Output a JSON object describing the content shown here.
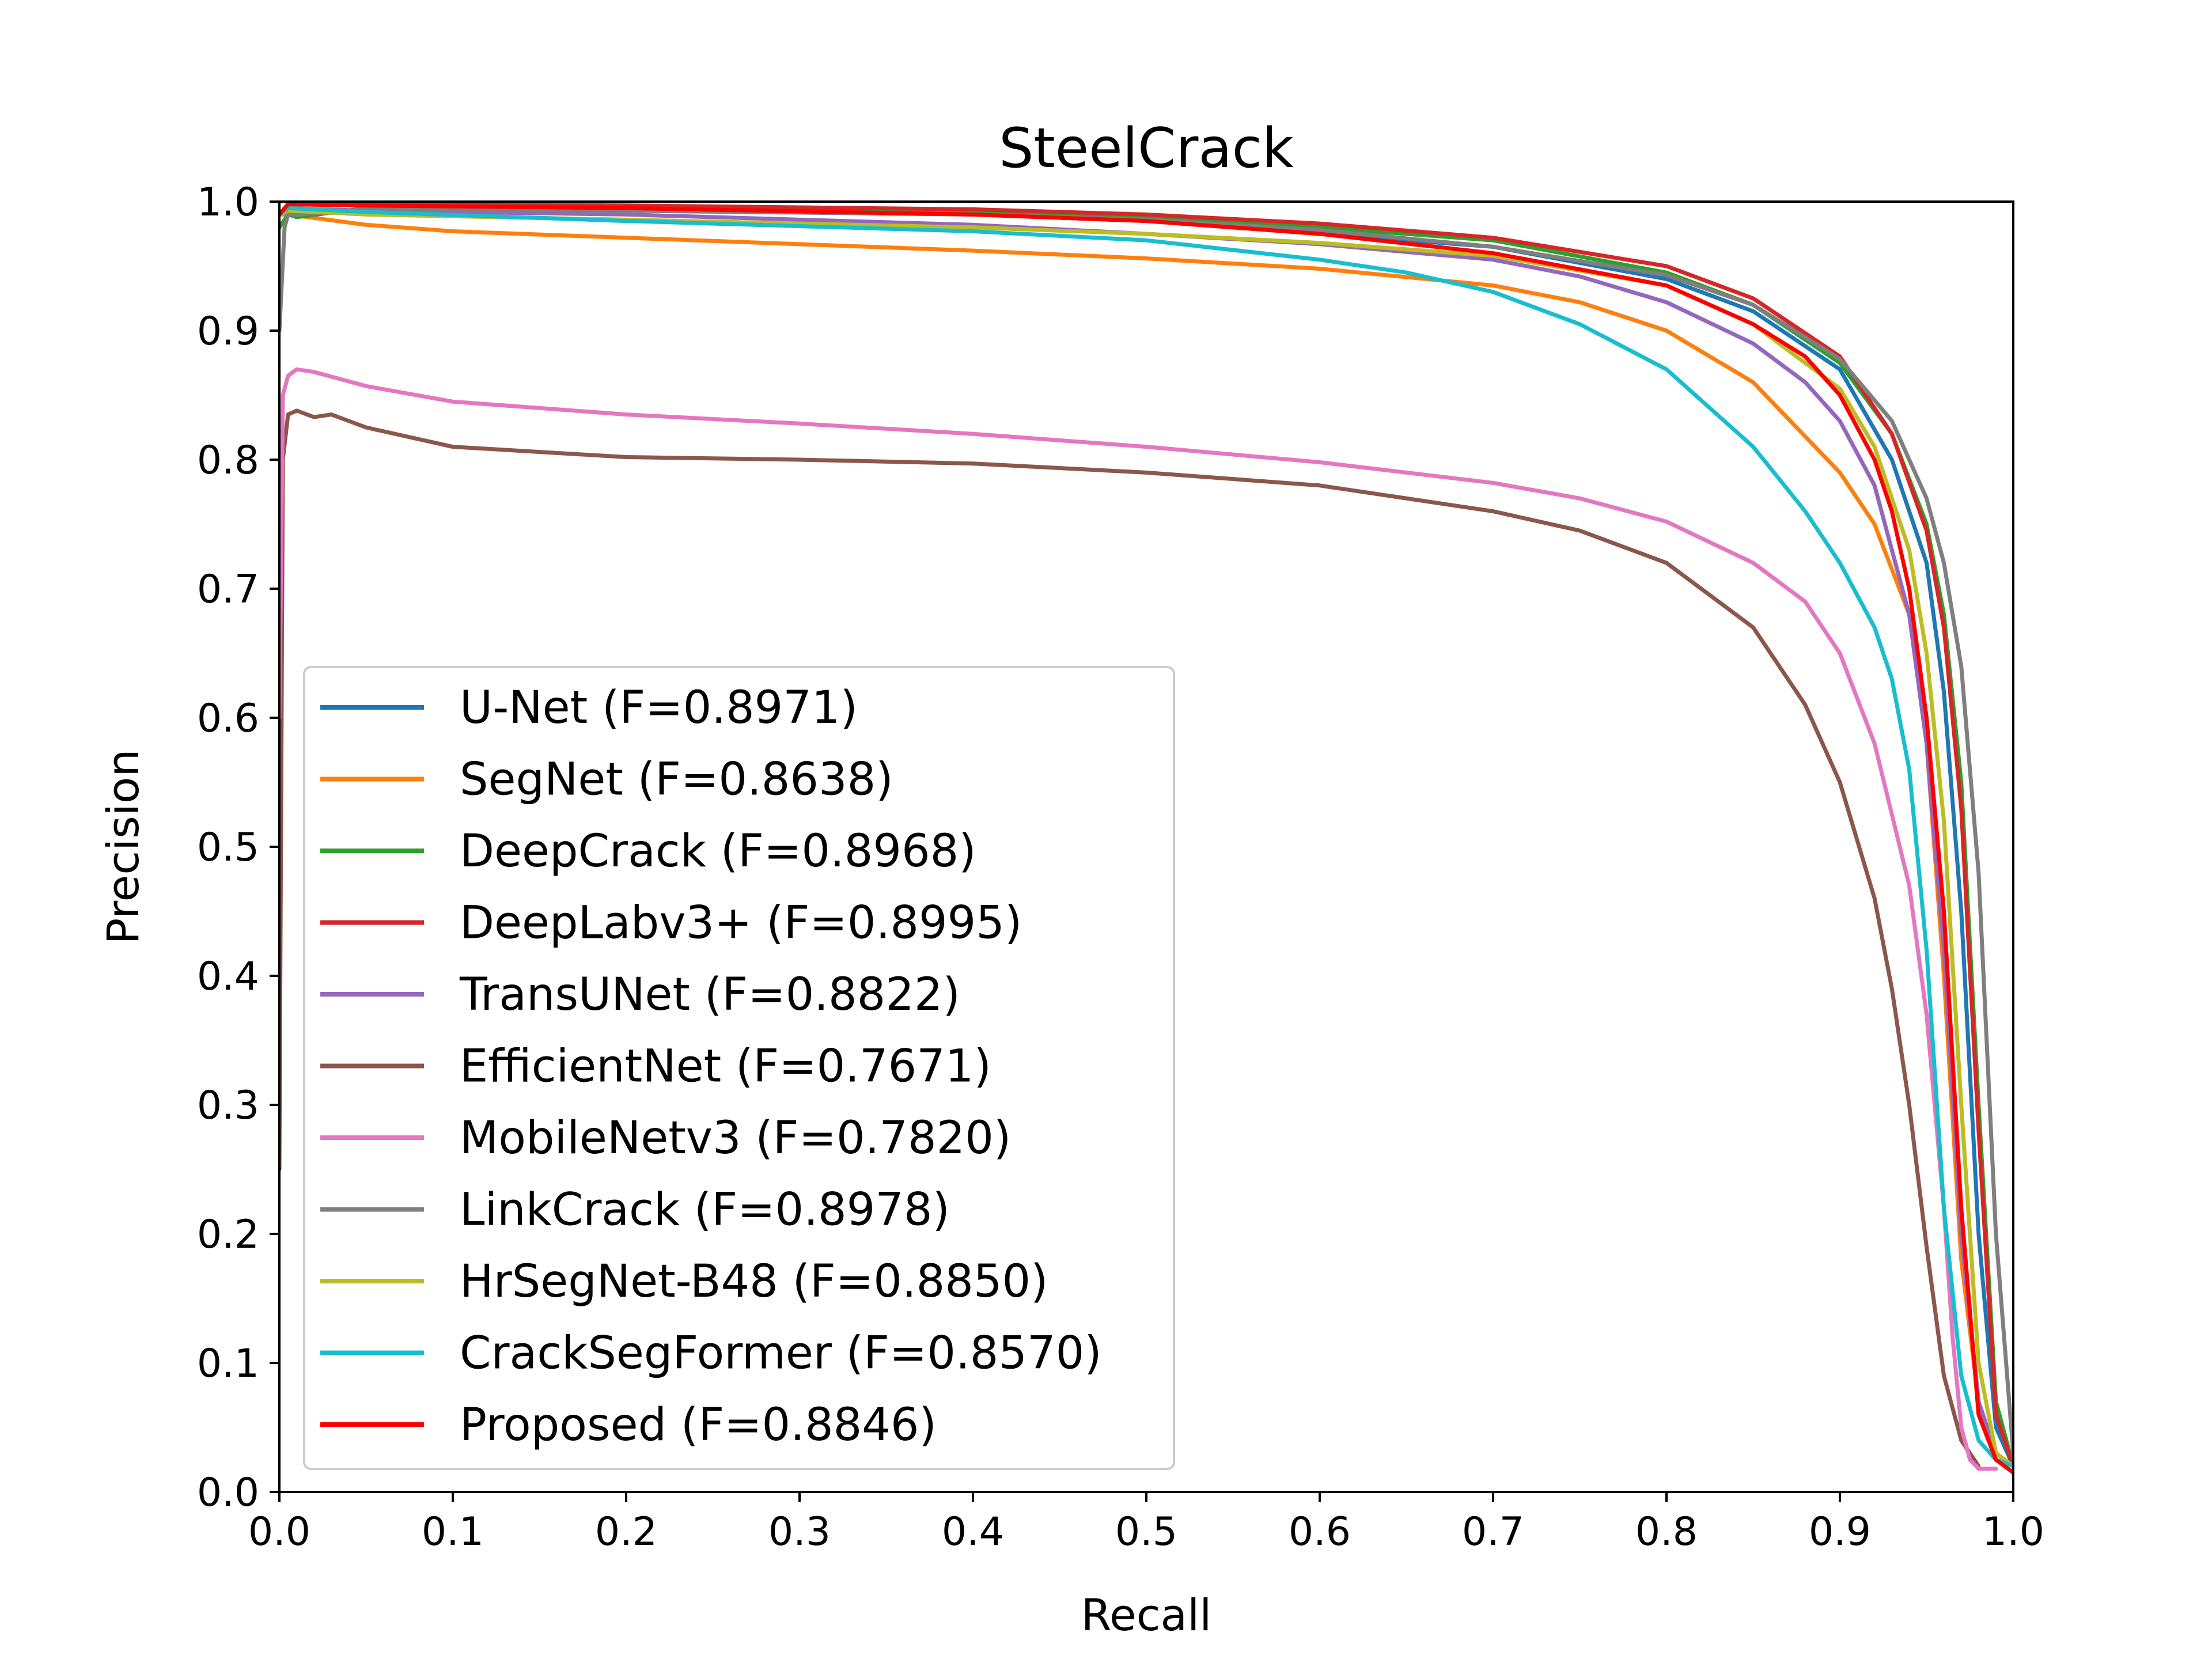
{
  "chart_data": {
    "type": "line",
    "title": "SteelCrack",
    "xlabel": "Recall",
    "ylabel": "Precision",
    "xlim": [
      0.0,
      1.0
    ],
    "ylim": [
      0.0,
      1.0
    ],
    "xticks": [
      "0.0",
      "0.1",
      "0.2",
      "0.3",
      "0.4",
      "0.5",
      "0.6",
      "0.7",
      "0.8",
      "0.9",
      "1.0"
    ],
    "yticks": [
      "0.0",
      "0.1",
      "0.2",
      "0.3",
      "0.4",
      "0.5",
      "0.6",
      "0.7",
      "0.8",
      "0.9",
      "1.0"
    ],
    "grid": false,
    "legend_position": "lower-left",
    "series": [
      {
        "name": "U-Net (F=0.8971)",
        "color": "#1f77b4",
        "x": [
          0.0,
          0.005,
          0.05,
          0.2,
          0.4,
          0.5,
          0.6,
          0.7,
          0.8,
          0.85,
          0.9,
          0.93,
          0.95,
          0.96,
          0.97,
          0.98,
          0.99,
          1.0
        ],
        "y": [
          0.99,
          0.998,
          0.997,
          0.995,
          0.99,
          0.985,
          0.975,
          0.965,
          0.94,
          0.915,
          0.87,
          0.8,
          0.72,
          0.62,
          0.45,
          0.2,
          0.05,
          0.02
        ]
      },
      {
        "name": "SegNet (F=0.8638)",
        "color": "#ff7f0e",
        "x": [
          0.0,
          0.005,
          0.05,
          0.1,
          0.2,
          0.3,
          0.4,
          0.5,
          0.6,
          0.7,
          0.75,
          0.8,
          0.85,
          0.9,
          0.92,
          0.94,
          0.95,
          0.96,
          0.97,
          0.98,
          0.99,
          1.0
        ],
        "y": [
          0.99,
          0.99,
          0.982,
          0.977,
          0.972,
          0.967,
          0.962,
          0.956,
          0.948,
          0.935,
          0.922,
          0.9,
          0.86,
          0.79,
          0.75,
          0.68,
          0.58,
          0.4,
          0.18,
          0.07,
          0.03,
          0.02
        ]
      },
      {
        "name": "DeepCrack (F=0.8968)",
        "color": "#2ca02c",
        "x": [
          0.0,
          0.005,
          0.01,
          0.05,
          0.2,
          0.4,
          0.5,
          0.6,
          0.7,
          0.8,
          0.85,
          0.9,
          0.93,
          0.95,
          0.96,
          0.97,
          0.98,
          0.99,
          1.0
        ],
        "y": [
          0.98,
          0.99,
          0.988,
          0.995,
          0.995,
          0.992,
          0.988,
          0.98,
          0.97,
          0.945,
          0.92,
          0.875,
          0.82,
          0.75,
          0.68,
          0.55,
          0.3,
          0.07,
          0.02
        ]
      },
      {
        "name": "DeepLabv3+ (F=0.8995)",
        "color": "#d62728",
        "x": [
          0.0,
          0.005,
          0.05,
          0.2,
          0.4,
          0.5,
          0.6,
          0.7,
          0.8,
          0.85,
          0.9,
          0.93,
          0.95,
          0.96,
          0.97,
          0.98,
          0.99,
          1.0
        ],
        "y": [
          0.99,
          0.998,
          0.998,
          0.997,
          0.994,
          0.99,
          0.983,
          0.972,
          0.95,
          0.925,
          0.88,
          0.82,
          0.745,
          0.67,
          0.53,
          0.28,
          0.06,
          0.02
        ]
      },
      {
        "name": "TransUNet (F=0.8822)",
        "color": "#9467bd",
        "x": [
          0.0,
          0.005,
          0.05,
          0.2,
          0.4,
          0.5,
          0.6,
          0.7,
          0.75,
          0.8,
          0.85,
          0.88,
          0.9,
          0.92,
          0.94,
          0.95,
          0.96,
          0.97,
          0.98,
          0.99,
          1.0
        ],
        "y": [
          0.99,
          0.995,
          0.993,
          0.99,
          0.982,
          0.975,
          0.967,
          0.955,
          0.942,
          0.922,
          0.89,
          0.86,
          0.83,
          0.78,
          0.68,
          0.58,
          0.42,
          0.2,
          0.07,
          0.03,
          0.02
        ]
      },
      {
        "name": "EfficientNet (F=0.7671)",
        "color": "#8c564b",
        "x": [
          0.0,
          0.002,
          0.005,
          0.01,
          0.02,
          0.03,
          0.05,
          0.1,
          0.2,
          0.3,
          0.4,
          0.5,
          0.6,
          0.7,
          0.75,
          0.8,
          0.85,
          0.88,
          0.9,
          0.92,
          0.93,
          0.94,
          0.95,
          0.96,
          0.97,
          0.98
        ],
        "y": [
          0.25,
          0.8,
          0.835,
          0.838,
          0.833,
          0.835,
          0.825,
          0.81,
          0.802,
          0.8,
          0.797,
          0.79,
          0.78,
          0.76,
          0.745,
          0.72,
          0.67,
          0.61,
          0.55,
          0.46,
          0.39,
          0.3,
          0.19,
          0.09,
          0.04,
          0.02
        ]
      },
      {
        "name": "MobileNetv3 (F=0.7820)",
        "color": "#e377c2",
        "x": [
          0.0,
          0.002,
          0.005,
          0.01,
          0.02,
          0.05,
          0.1,
          0.2,
          0.3,
          0.4,
          0.5,
          0.6,
          0.7,
          0.75,
          0.8,
          0.85,
          0.88,
          0.9,
          0.92,
          0.94,
          0.95,
          0.96,
          0.965,
          0.97,
          0.975,
          0.98,
          0.99
        ],
        "y": [
          0.6,
          0.85,
          0.865,
          0.87,
          0.868,
          0.857,
          0.845,
          0.835,
          0.828,
          0.82,
          0.81,
          0.798,
          0.782,
          0.77,
          0.752,
          0.72,
          0.69,
          0.65,
          0.58,
          0.47,
          0.37,
          0.22,
          0.12,
          0.05,
          0.025,
          0.018,
          0.018
        ]
      },
      {
        "name": "LinkCrack (F=0.8978)",
        "color": "#7f7f7f",
        "x": [
          0.0,
          0.003,
          0.005,
          0.01,
          0.05,
          0.2,
          0.4,
          0.5,
          0.6,
          0.7,
          0.8,
          0.85,
          0.9,
          0.93,
          0.95,
          0.96,
          0.97,
          0.98,
          0.99,
          1.0
        ],
        "y": [
          0.9,
          0.98,
          0.99,
          0.99,
          0.994,
          0.993,
          0.99,
          0.986,
          0.978,
          0.965,
          0.943,
          0.92,
          0.878,
          0.83,
          0.77,
          0.72,
          0.64,
          0.48,
          0.2,
          0.03
        ]
      },
      {
        "name": "HrSegNet-B48 (F=0.8850)",
        "color": "#bcbd22",
        "x": [
          0.0,
          0.005,
          0.05,
          0.2,
          0.4,
          0.5,
          0.6,
          0.7,
          0.8,
          0.85,
          0.9,
          0.92,
          0.94,
          0.95,
          0.96,
          0.97,
          0.98,
          0.99,
          1.0
        ],
        "y": [
          0.99,
          0.993,
          0.99,
          0.986,
          0.98,
          0.975,
          0.968,
          0.958,
          0.935,
          0.905,
          0.855,
          0.81,
          0.73,
          0.65,
          0.52,
          0.3,
          0.1,
          0.03,
          0.02
        ]
      },
      {
        "name": "CrackSegFormer (F=0.8570)",
        "color": "#17becf",
        "x": [
          0.0,
          0.005,
          0.05,
          0.2,
          0.4,
          0.5,
          0.6,
          0.65,
          0.7,
          0.75,
          0.8,
          0.85,
          0.88,
          0.9,
          0.92,
          0.93,
          0.94,
          0.95,
          0.96,
          0.97,
          0.98,
          0.99,
          1.0
        ],
        "y": [
          0.99,
          0.995,
          0.992,
          0.985,
          0.977,
          0.97,
          0.955,
          0.945,
          0.93,
          0.905,
          0.87,
          0.81,
          0.76,
          0.72,
          0.67,
          0.63,
          0.56,
          0.42,
          0.22,
          0.09,
          0.04,
          0.025,
          0.02
        ]
      },
      {
        "name": "Proposed (F=0.8846)",
        "color": "#ff0000",
        "x": [
          0.0,
          0.005,
          0.05,
          0.2,
          0.4,
          0.5,
          0.6,
          0.7,
          0.8,
          0.85,
          0.88,
          0.9,
          0.92,
          0.93,
          0.94,
          0.95,
          0.96,
          0.97,
          0.98,
          0.99,
          1.0
        ],
        "y": [
          0.99,
          0.998,
          0.997,
          0.995,
          0.99,
          0.985,
          0.975,
          0.96,
          0.935,
          0.905,
          0.88,
          0.85,
          0.8,
          0.76,
          0.7,
          0.6,
          0.45,
          0.22,
          0.06,
          0.025,
          0.015
        ]
      }
    ]
  }
}
